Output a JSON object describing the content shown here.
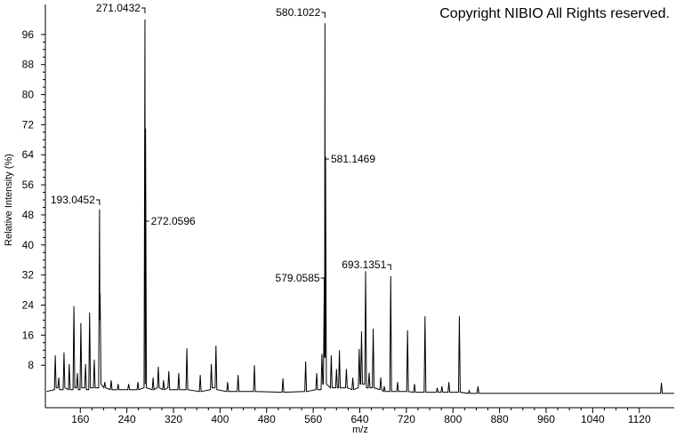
{
  "chart_data": {
    "type": "line",
    "copyright": "Copyright NIBIO All Rights reserved.",
    "ylabel": "Relative Intensity (%)",
    "xlabel": "m/z",
    "xlim": [
      100,
      1180
    ],
    "ylim": [
      -3.3,
      104
    ],
    "xticks": [
      160,
      240,
      320,
      400,
      480,
      560,
      640,
      720,
      800,
      880,
      960,
      1040,
      1120
    ],
    "yticks": [
      8,
      16,
      24,
      32,
      40,
      48,
      56,
      64,
      72,
      80,
      88,
      96
    ],
    "annotations": [
      271.0432,
      580.1022,
      193.0452,
      272.0596,
      581.1469,
      579.0585,
      693.1351
    ],
    "x": [
      102,
      115.5,
      117,
      118.5,
      121.5,
      123,
      124.5,
      130.5,
      132,
      133.5,
      139.5,
      141,
      142.5,
      147.5,
      149,
      150.5,
      153.5,
      155,
      156.5,
      159.5,
      161,
      162.5,
      167.5,
      169,
      170.5,
      174.5,
      176,
      177.5,
      182.5,
      184,
      185.5,
      191.5,
      193.0452,
      193.6,
      194.05,
      195.5,
      200.5,
      202,
      203.5,
      211.5,
      213,
      214.5,
      223.5,
      225,
      226.5,
      241.5,
      243,
      244.5,
      257.5,
      259,
      260.5,
      269.5,
      271.0432,
      271.6,
      272.0596,
      273.5,
      283.5,
      285,
      286.5,
      292.5,
      294,
      295.5,
      301.5,
      303,
      304.5,
      310.5,
      312,
      313.5,
      327.5,
      329,
      330.5,
      341.5,
      343,
      344.5,
      364.5,
      366,
      367.5,
      383.5,
      385,
      386.5,
      391.5,
      393,
      394.5,
      411.5,
      413,
      414.5,
      429.5,
      431,
      432.5,
      457.5,
      459,
      460.5,
      506.5,
      508,
      509.5,
      545.5,
      547,
      548.5,
      564.5,
      566,
      567.5,
      573.5,
      575,
      576.5,
      577.5,
      579.0585,
      579.6,
      580.1022,
      580.6,
      581.1469,
      582.6,
      589.5,
      591,
      592.5,
      598.5,
      600,
      601.5,
      603.5,
      605,
      606.5,
      615.5,
      617,
      618.5,
      626.5,
      628,
      629.5,
      637.5,
      639,
      640.5,
      641.5,
      643,
      644.5,
      648.5,
      650,
      651.5,
      654.5,
      656,
      657.5,
      661.5,
      663,
      664.5,
      674.5,
      676,
      677.5,
      680.5,
      682,
      683.5,
      691.5,
      693.1351,
      694.5,
      703.5,
      705,
      706.5,
      720.5,
      722,
      723.5,
      732.5,
      734,
      735.5,
      750.5,
      752,
      753.5,
      771.5,
      773,
      774.5,
      779.5,
      781,
      782.5,
      791.5,
      793,
      794.5,
      809.5,
      811,
      812.5,
      826.5,
      828,
      829.5,
      841.5,
      843,
      844.5,
      1156.5,
      1158,
      1159.5,
      1180
    ],
    "series": [
      {
        "color": "#000000",
        "values": [
          1,
          1.5,
          10.6,
          2,
          2,
          4.7,
          1.5,
          1.5,
          11.4,
          2,
          1.5,
          8.3,
          1.5,
          1.5,
          23.7,
          2,
          2,
          5.9,
          1.5,
          1.5,
          19.2,
          2,
          2,
          8.3,
          1.5,
          1.5,
          22,
          2,
          2,
          9.5,
          2,
          2,
          49.5,
          20,
          27,
          3,
          2,
          3.5,
          2,
          1.5,
          4,
          1.5,
          1.5,
          3,
          1.5,
          1.5,
          3,
          1.5,
          1.5,
          3.5,
          1.5,
          2,
          100,
          3,
          71,
          2,
          1.5,
          4.7,
          1.5,
          2,
          7.6,
          2,
          1.5,
          4,
          1.5,
          2,
          6.4,
          1.5,
          1.5,
          5.9,
          1.5,
          1.5,
          12.5,
          1.5,
          1,
          5.4,
          1,
          1.5,
          8.3,
          2,
          2,
          13.2,
          1.5,
          1,
          3.5,
          1,
          1,
          5.4,
          1,
          1,
          8,
          1,
          0.8,
          4.5,
          0.8,
          1,
          9,
          1,
          1.5,
          5.9,
          1.5,
          1.5,
          11,
          3,
          3,
          31,
          10,
          99,
          10,
          63.6,
          3,
          2,
          10.6,
          2,
          2,
          7,
          2,
          2,
          12,
          2,
          2,
          7,
          2,
          1.5,
          4.7,
          1.5,
          2,
          12.3,
          3,
          3,
          17,
          3,
          3,
          33,
          2,
          2,
          6,
          2,
          2,
          17.7,
          2,
          1.5,
          4.7,
          1.5,
          1,
          2.4,
          1,
          1,
          31.7,
          1,
          1,
          3.5,
          1,
          1,
          17.3,
          1,
          0.8,
          3,
          0.8,
          0.8,
          21,
          0.8,
          0.8,
          2,
          0.8,
          0.8,
          2.4,
          0.8,
          0.8,
          3.5,
          0.8,
          0.8,
          21,
          0.8,
          0.5,
          1.2,
          0.5,
          0.5,
          2.4,
          0.5,
          0.5,
          3.3,
          0.5,
          0.5
        ]
      }
    ]
  }
}
